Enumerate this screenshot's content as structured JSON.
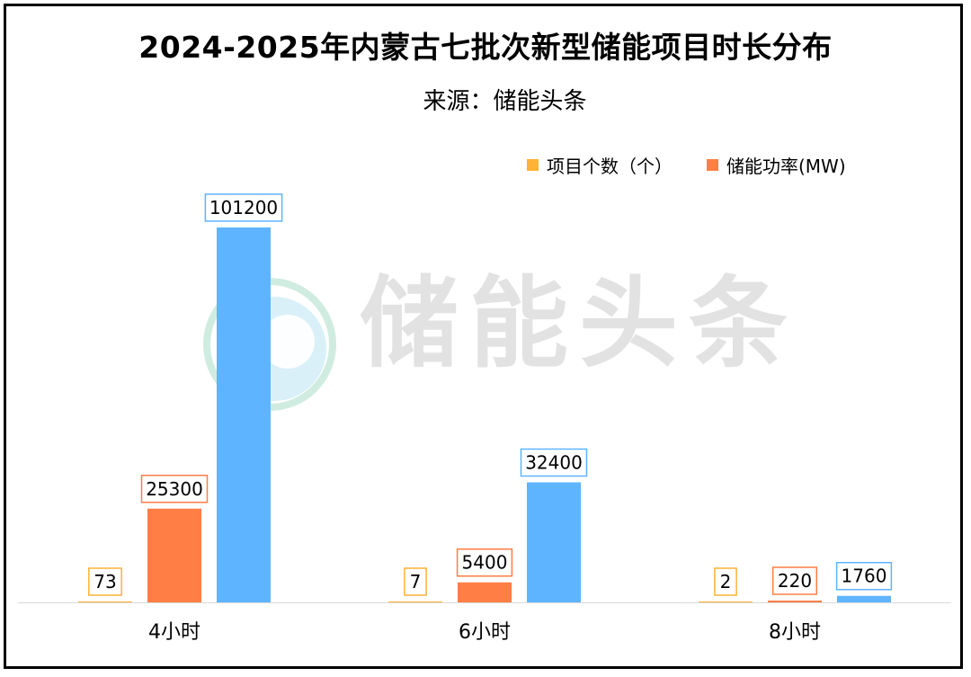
{
  "title": "2024-2025年内蒙古七批次新型储能项目时长分布",
  "subtitle": "来源：储能头条",
  "watermark": "储能头条",
  "colors": {
    "series_0": "#FFB236",
    "series_1": "#FF7E45",
    "series_2": "#5EB4FF",
    "axis": "#D9D9D9"
  },
  "chart_data": {
    "type": "bar",
    "title": "2024-2025年内蒙古七批次新型储能项目时长分布",
    "subtitle": "来源：储能头条",
    "categories": [
      "4小时",
      "6小时",
      "8小时"
    ],
    "series": [
      {
        "name": "项目个数（个）",
        "values": [
          73,
          7,
          2
        ]
      },
      {
        "name": "储能功率(MW)",
        "values": [
          25300,
          5400,
          220
        ]
      },
      {
        "values": [
          101200,
          32400,
          1760
        ]
      }
    ],
    "ylim": [
      0,
      101200
    ],
    "grid": false,
    "legend": "top-right",
    "xlabel": "",
    "ylabel": ""
  }
}
